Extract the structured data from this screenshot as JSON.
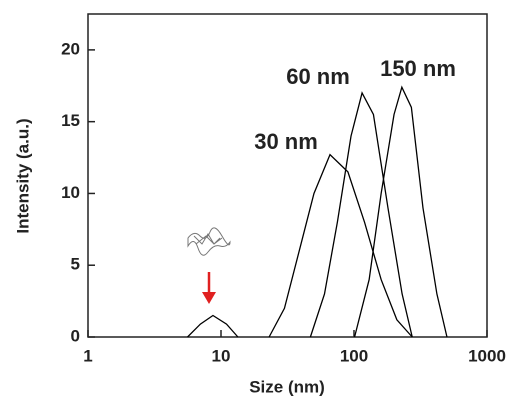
{
  "chart_data": {
    "type": "line",
    "xlabel": "Size (nm)",
    "ylabel": "Intensity (a.u.)",
    "xlog": true,
    "xlim": [
      1,
      1000
    ],
    "xticks": [
      1,
      10,
      100,
      1000
    ],
    "ylim": [
      0,
      22.5
    ],
    "yticks": [
      0,
      5,
      10,
      15,
      20
    ],
    "annotations": [
      "30 nm",
      "60 nm",
      "150 nm"
    ],
    "series": [
      {
        "color": "#000000",
        "x": [
          5.6,
          7,
          8.7,
          11,
          13.4
        ],
        "values": [
          0,
          0.9,
          1.5,
          0.9,
          0
        ]
      },
      {
        "color": "#000000",
        "x": [
          23,
          30,
          40,
          50,
          66,
          90,
          120,
          160,
          210,
          274
        ],
        "values": [
          0,
          2,
          6.5,
          10,
          12.7,
          11.5,
          8,
          4,
          1.2,
          0
        ]
      },
      {
        "color": "#000000",
        "x": [
          47,
          60,
          75,
          95,
          115,
          140,
          180,
          230,
          274
        ],
        "values": [
          0,
          3,
          8,
          14,
          17,
          15.5,
          9,
          3,
          0
        ]
      },
      {
        "color": "#000000",
        "x": [
          101,
          130,
          160,
          200,
          229,
          270,
          330,
          420,
          500
        ],
        "values": [
          0,
          4,
          10,
          15.5,
          17.4,
          16,
          9,
          3,
          0
        ]
      }
    ]
  }
}
